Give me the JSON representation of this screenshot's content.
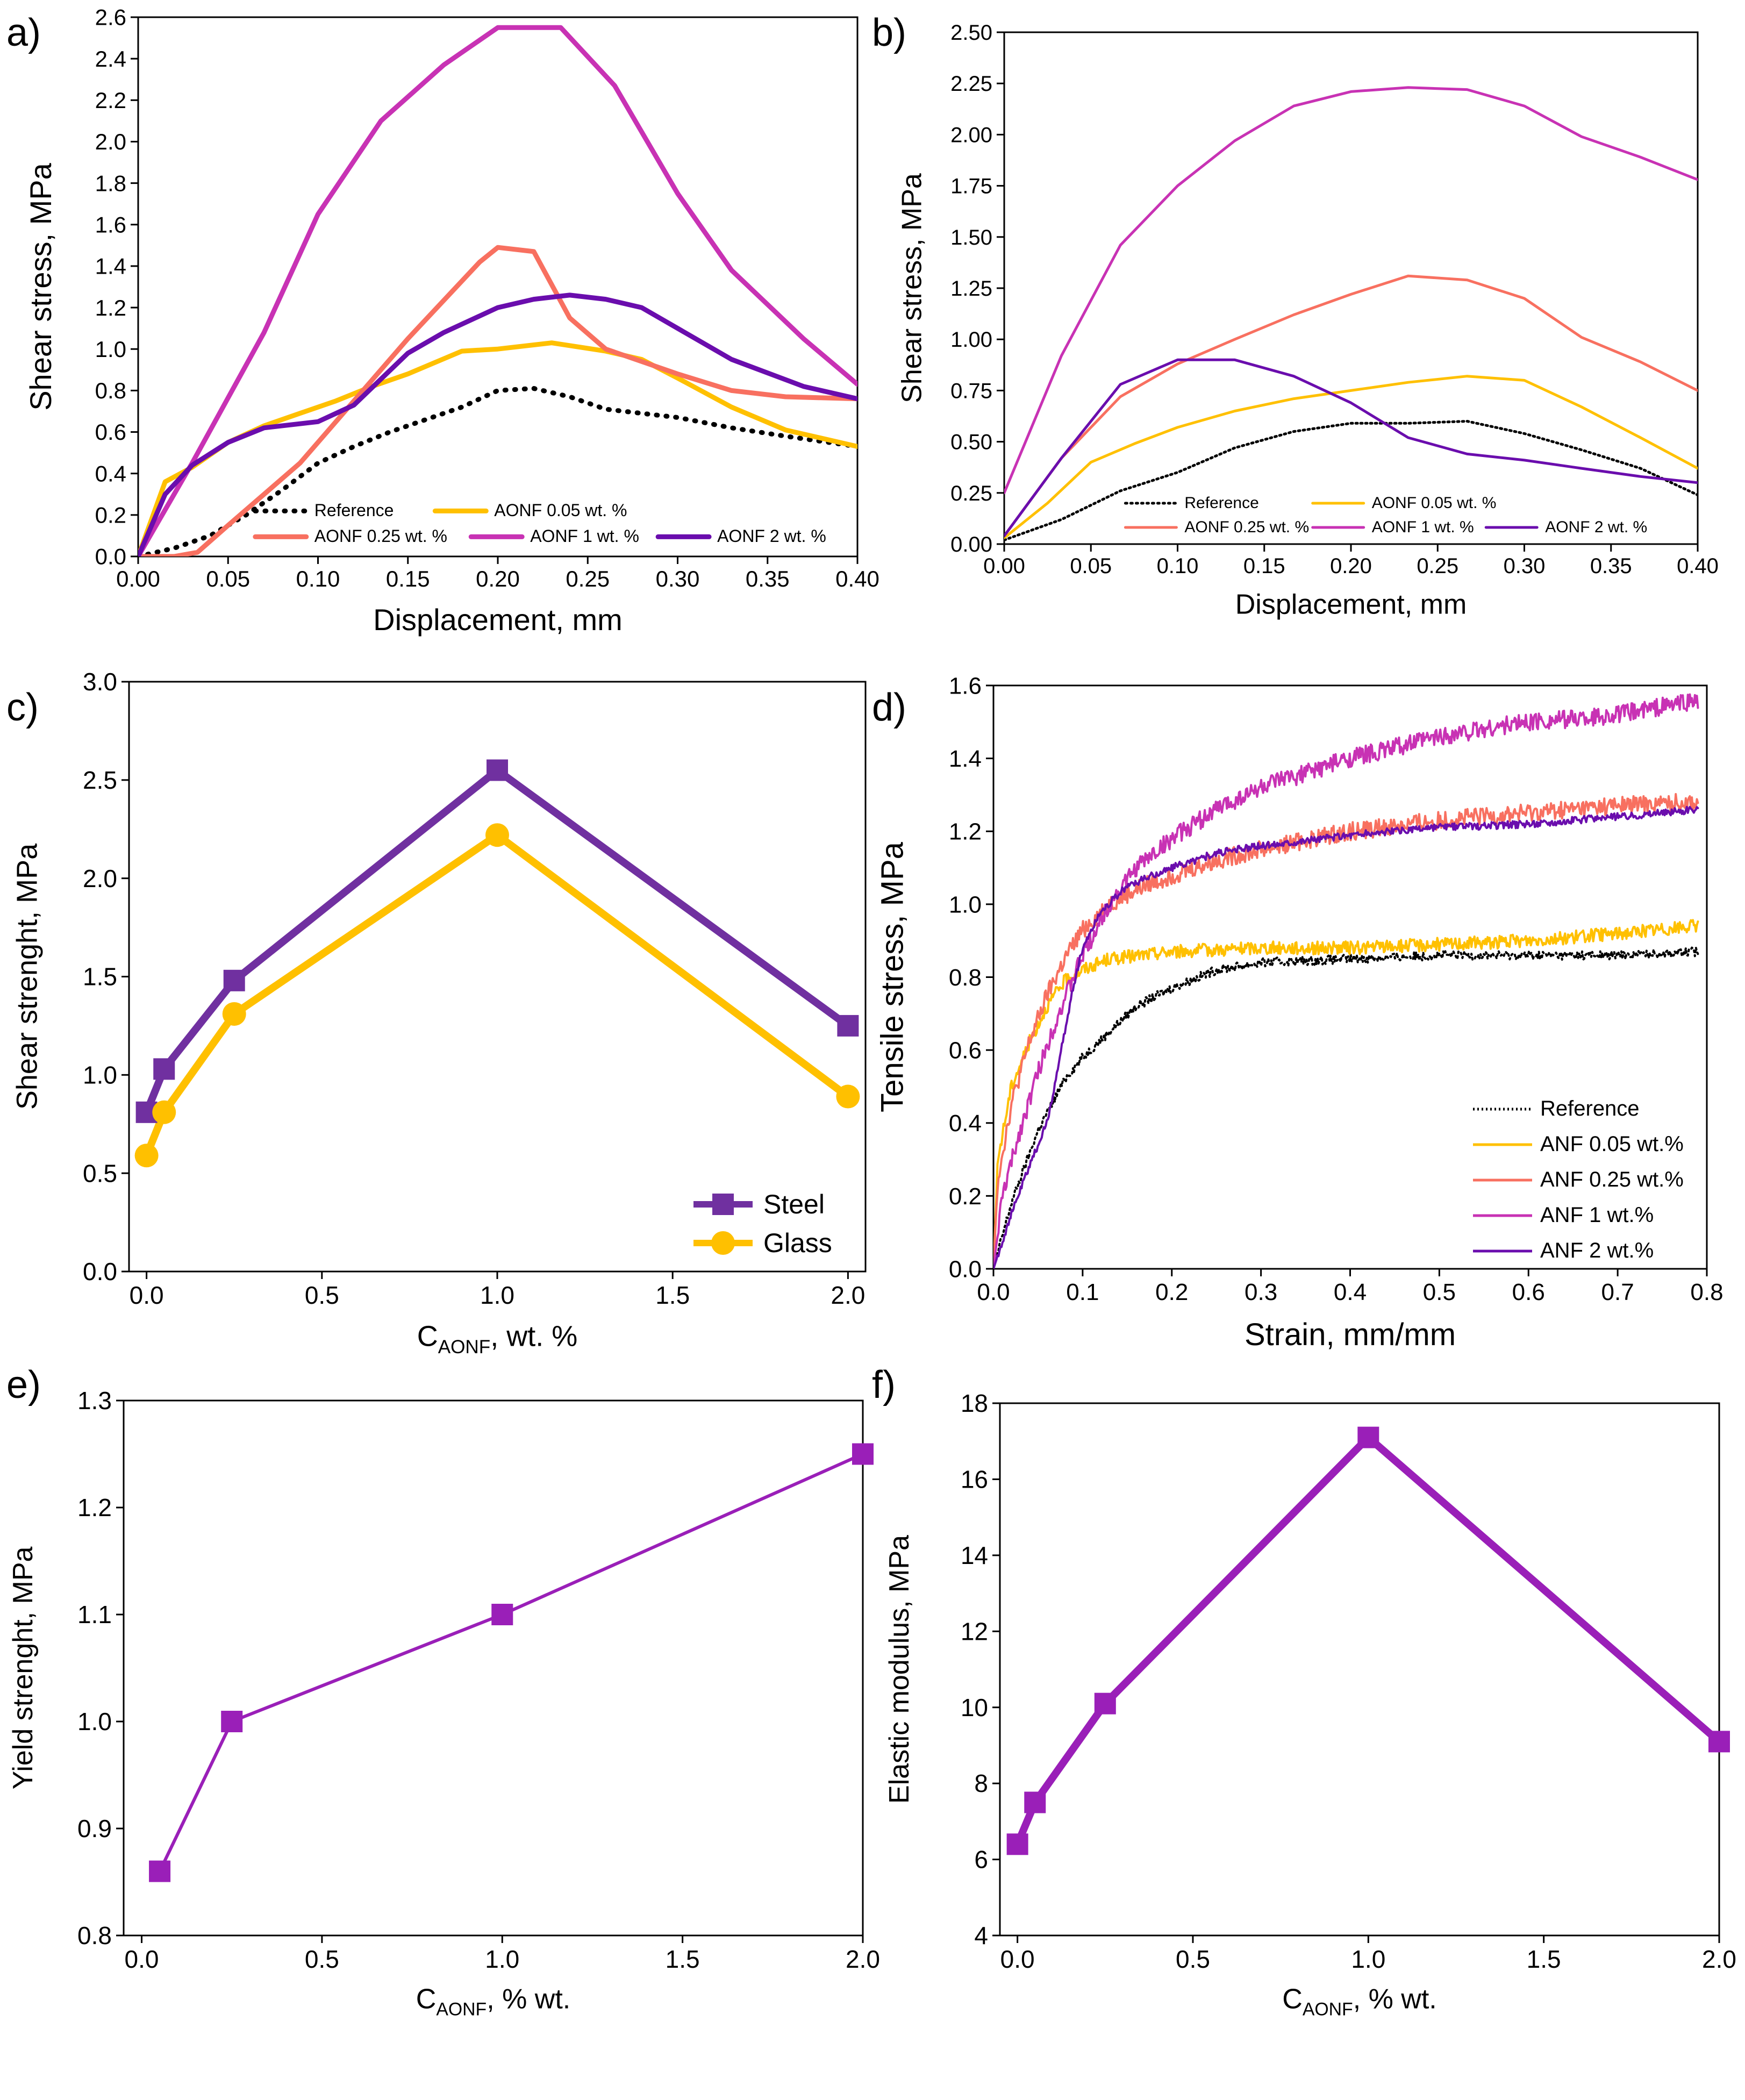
{
  "colors": {
    "reference": "#000000",
    "aonf005": "#FFC000",
    "aonf025": "#F87060",
    "aonf1": "#C832B4",
    "aonf2": "#6A0DAD",
    "steel": "#7030A0",
    "glass": "#FFC000",
    "purple": "#9A1FB8"
  },
  "chart_data": [
    {
      "id": "a",
      "type": "line",
      "panel_label": "a)",
      "xlabel": "Displacement, mm",
      "ylabel": "Shear stress, MPa",
      "xlim": [
        0,
        0.4
      ],
      "ylim": [
        0,
        2.6
      ],
      "xticks": [
        0,
        0.05,
        0.1,
        0.15,
        0.2,
        0.25,
        0.3,
        0.35,
        0.4
      ],
      "xtick_labels": [
        "0.00",
        "0.05",
        "0.10",
        "0.15",
        "0.20",
        "0.25",
        "0.30",
        "0.35",
        "0.40"
      ],
      "yticks": [
        0,
        0.2,
        0.4,
        0.6,
        0.8,
        1.0,
        1.2,
        1.4,
        1.6,
        1.8,
        2.0,
        2.2,
        2.4,
        2.6
      ],
      "ytick_labels": [
        "0.0",
        "0.2",
        "0.4",
        "0.6",
        "0.8",
        "1.0",
        "1.2",
        "1.4",
        "1.6",
        "1.8",
        "2.0",
        "2.2",
        "2.4",
        "2.6"
      ],
      "legend": {
        "position": "bottom-center",
        "cols": 3,
        "rows": [
          [
            "Reference",
            "AONF 0.05 wt. %"
          ],
          [
            "AONF 0.25 wt. %",
            "AONF 1 wt. %",
            "AONF 2 wt. %"
          ]
        ]
      },
      "series": [
        {
          "name": "Reference",
          "color": "#000000",
          "dash": "dot",
          "width": 9,
          "x": [
            0,
            0.02,
            0.04,
            0.06,
            0.08,
            0.1,
            0.12,
            0.14,
            0.16,
            0.18,
            0.2,
            0.22,
            0.24,
            0.26,
            0.28,
            0.3,
            0.33,
            0.36,
            0.4
          ],
          "y": [
            0,
            0.04,
            0.1,
            0.2,
            0.32,
            0.45,
            0.53,
            0.6,
            0.66,
            0.72,
            0.8,
            0.81,
            0.77,
            0.71,
            0.69,
            0.67,
            0.62,
            0.58,
            0.53
          ]
        },
        {
          "name": "AONF 0.05 wt. %",
          "color": "#FFC000",
          "width": 9,
          "x": [
            0,
            0.015,
            0.03,
            0.05,
            0.07,
            0.09,
            0.11,
            0.13,
            0.15,
            0.18,
            0.2,
            0.23,
            0.26,
            0.28,
            0.3,
            0.33,
            0.36,
            0.4
          ],
          "y": [
            0,
            0.36,
            0.43,
            0.55,
            0.63,
            0.69,
            0.75,
            0.82,
            0.88,
            0.99,
            1.0,
            1.03,
            0.99,
            0.95,
            0.86,
            0.72,
            0.61,
            0.53
          ]
        },
        {
          "name": "AONF 0.25 wt. %",
          "color": "#F87060",
          "width": 9,
          "x": [
            0,
            0.02,
            0.033,
            0.05,
            0.07,
            0.09,
            0.11,
            0.13,
            0.15,
            0.19,
            0.2,
            0.22,
            0.24,
            0.26,
            0.3,
            0.33,
            0.36,
            0.4
          ],
          "y": [
            0,
            0,
            0.02,
            0.15,
            0.3,
            0.45,
            0.65,
            0.85,
            1.05,
            1.42,
            1.49,
            1.47,
            1.15,
            1.0,
            0.88,
            0.8,
            0.77,
            0.76
          ]
        },
        {
          "name": "AONF 1 wt. %",
          "color": "#C832B4",
          "width": 9,
          "x": [
            0,
            0.03,
            0.07,
            0.1,
            0.135,
            0.17,
            0.2,
            0.235,
            0.265,
            0.3,
            0.33,
            0.37,
            0.4
          ],
          "y": [
            0,
            0.45,
            1.08,
            1.65,
            2.1,
            2.37,
            2.55,
            2.55,
            2.27,
            1.75,
            1.38,
            1.05,
            0.83
          ]
        },
        {
          "name": "AONF 2 wt. %",
          "color": "#6A0DAD",
          "width": 9,
          "x": [
            0,
            0.015,
            0.03,
            0.05,
            0.07,
            0.1,
            0.12,
            0.15,
            0.17,
            0.2,
            0.22,
            0.24,
            0.26,
            0.28,
            0.3,
            0.33,
            0.37,
            0.4
          ],
          "y": [
            0,
            0.3,
            0.44,
            0.55,
            0.62,
            0.65,
            0.73,
            0.98,
            1.08,
            1.2,
            1.24,
            1.26,
            1.24,
            1.2,
            1.1,
            0.95,
            0.82,
            0.76
          ]
        }
      ]
    },
    {
      "id": "b",
      "type": "line",
      "panel_label": "b)",
      "xlabel": "Displacement, mm",
      "ylabel": "Shear stress, MPa",
      "xlim": [
        0,
        0.4
      ],
      "ylim": [
        0,
        2.5
      ],
      "xticks": [
        0,
        0.05,
        0.1,
        0.15,
        0.2,
        0.25,
        0.3,
        0.35,
        0.4
      ],
      "xtick_labels": [
        "0.00",
        "0.05",
        "0.10",
        "0.15",
        "0.20",
        "0.25",
        "0.30",
        "0.35",
        "0.40"
      ],
      "yticks": [
        0,
        0.25,
        0.5,
        0.75,
        1.0,
        1.25,
        1.5,
        1.75,
        2.0,
        2.25,
        2.5
      ],
      "ytick_labels": [
        "0.00",
        "0.25",
        "0.50",
        "0.75",
        "1.00",
        "1.25",
        "1.50",
        "1.75",
        "2.00",
        "2.25",
        "2.50"
      ],
      "legend": {
        "position": "bottom-center",
        "cols": 3,
        "rows": [
          [
            "Reference",
            "AONF 0.05 wt. %"
          ],
          [
            "AONF 0.25 wt. %",
            "AONF 1 wt. %",
            "AONF 2 wt. %"
          ]
        ]
      },
      "series": [
        {
          "name": "Reference",
          "color": "#000000",
          "dash": "dot",
          "width": 5,
          "x": [
            0,
            0.033,
            0.067,
            0.1,
            0.133,
            0.167,
            0.2,
            0.233,
            0.267,
            0.3,
            0.333,
            0.367,
            0.4
          ],
          "y": [
            0.02,
            0.12,
            0.26,
            0.35,
            0.47,
            0.55,
            0.59,
            0.59,
            0.6,
            0.54,
            0.46,
            0.37,
            0.24
          ]
        },
        {
          "name": "AONF 0.05 wt. %",
          "color": "#FFC000",
          "width": 5,
          "x": [
            0,
            0.025,
            0.05,
            0.075,
            0.1,
            0.133,
            0.167,
            0.2,
            0.233,
            0.267,
            0.3,
            0.333,
            0.367,
            0.4
          ],
          "y": [
            0.03,
            0.2,
            0.4,
            0.49,
            0.57,
            0.65,
            0.71,
            0.75,
            0.79,
            0.82,
            0.8,
            0.67,
            0.52,
            0.37
          ]
        },
        {
          "name": "AONF 0.25 wt. %",
          "color": "#F87060",
          "width": 5,
          "x": [
            0,
            0.033,
            0.067,
            0.1,
            0.133,
            0.167,
            0.2,
            0.233,
            0.267,
            0.3,
            0.333,
            0.367,
            0.4
          ],
          "y": [
            0.04,
            0.42,
            0.72,
            0.88,
            1.0,
            1.12,
            1.22,
            1.31,
            1.29,
            1.2,
            1.01,
            0.89,
            0.75
          ]
        },
        {
          "name": "AONF 1 wt. %",
          "color": "#C832B4",
          "width": 5,
          "x": [
            0,
            0.033,
            0.067,
            0.1,
            0.133,
            0.167,
            0.2,
            0.233,
            0.267,
            0.3,
            0.333,
            0.367,
            0.4
          ],
          "y": [
            0.25,
            0.92,
            1.46,
            1.75,
            1.97,
            2.14,
            2.21,
            2.23,
            2.22,
            2.14,
            1.99,
            1.89,
            1.78
          ]
        },
        {
          "name": "AONF 2 wt. %",
          "color": "#6A0DAD",
          "width": 5,
          "x": [
            0,
            0.033,
            0.067,
            0.1,
            0.133,
            0.167,
            0.2,
            0.233,
            0.267,
            0.3,
            0.333,
            0.367,
            0.4
          ],
          "y": [
            0.04,
            0.42,
            0.78,
            0.9,
            0.9,
            0.82,
            0.69,
            0.52,
            0.44,
            0.41,
            0.37,
            0.33,
            0.3
          ]
        }
      ]
    },
    {
      "id": "c",
      "type": "line",
      "panel_label": "c)",
      "xlabel_main": "C",
      "xlabel_sub": "AONF",
      "xlabel_rest": ", wt. %",
      "ylabel": "Shear strenght, MPa",
      "xlim": [
        -0.05,
        2.05
      ],
      "ylim": [
        0,
        3.0
      ],
      "xticks": [
        0,
        0.5,
        1.0,
        1.5,
        2.0
      ],
      "xtick_labels": [
        "0.0",
        "0.5",
        "1.0",
        "1.5",
        "2.0"
      ],
      "yticks": [
        0,
        0.5,
        1.0,
        1.5,
        2.0,
        2.5,
        3.0
      ],
      "ytick_labels": [
        "0.0",
        "0.5",
        "1.0",
        "1.5",
        "2.0",
        "2.5",
        "3.0"
      ],
      "legend": {
        "position": "bottom-right",
        "rows": [
          [
            "Steel"
          ],
          [
            "Glass"
          ]
        ]
      },
      "series": [
        {
          "name": "Steel",
          "color": "#7030A0",
          "marker": "square",
          "width": 14,
          "x": [
            0,
            0.05,
            0.25,
            1.0,
            2.0
          ],
          "y": [
            0.81,
            1.03,
            1.48,
            2.55,
            1.25
          ]
        },
        {
          "name": "Glass",
          "color": "#FFC000",
          "marker": "circle",
          "width": 14,
          "x": [
            0,
            0.05,
            0.25,
            1.0,
            2.0
          ],
          "y": [
            0.59,
            0.81,
            1.31,
            2.22,
            0.89
          ]
        }
      ]
    },
    {
      "id": "d",
      "type": "line",
      "panel_label": "d)",
      "xlabel": "Strain, mm/mm",
      "ylabel": "Tensile stress, MPa",
      "xlim": [
        0,
        0.8
      ],
      "ylim": [
        0,
        1.6
      ],
      "xticks": [
        0,
        0.1,
        0.2,
        0.3,
        0.4,
        0.5,
        0.6,
        0.7,
        0.8
      ],
      "xtick_labels": [
        "0.0",
        "0.1",
        "0.2",
        "0.3",
        "0.4",
        "0.5",
        "0.6",
        "0.7",
        "0.8"
      ],
      "yticks": [
        0,
        0.2,
        0.4,
        0.6,
        0.8,
        1.0,
        1.2,
        1.4,
        1.6
      ],
      "ytick_labels": [
        "0.0",
        "0.2",
        "0.4",
        "0.6",
        "0.8",
        "1.0",
        "1.2",
        "1.4",
        "1.6"
      ],
      "legend": {
        "position": "bottom-right",
        "rows": [
          [
            "Reference"
          ],
          [
            "ANF 0.05 wt.%"
          ],
          [
            "ANF 0.25 wt.%"
          ],
          [
            "ANF 1 wt.%"
          ],
          [
            "ANF 2 wt.%"
          ]
        ]
      },
      "series": [
        {
          "name": "Reference",
          "color": "#000000",
          "dash": "dot",
          "width": 4,
          "noise": 0.012,
          "x": [
            0,
            0.02,
            0.05,
            0.08,
            0.1,
            0.13,
            0.16,
            0.2,
            0.25,
            0.3,
            0.4,
            0.5,
            0.6,
            0.7,
            0.79
          ],
          "y": [
            0,
            0.18,
            0.38,
            0.52,
            0.58,
            0.65,
            0.72,
            0.77,
            0.82,
            0.84,
            0.85,
            0.86,
            0.86,
            0.86,
            0.87
          ]
        },
        {
          "name": "ANF 0.05 wt.%",
          "color": "#FFC000",
          "width": 4,
          "noise": 0.018,
          "x": [
            0,
            0.005,
            0.02,
            0.04,
            0.06,
            0.08,
            0.1,
            0.13,
            0.2,
            0.3,
            0.4,
            0.5,
            0.6,
            0.7,
            0.79
          ],
          "y": [
            0,
            0.3,
            0.5,
            0.62,
            0.72,
            0.79,
            0.82,
            0.85,
            0.87,
            0.88,
            0.88,
            0.89,
            0.9,
            0.92,
            0.94
          ]
        },
        {
          "name": "ANF 0.25 wt.%",
          "color": "#F87060",
          "width": 4,
          "noise": 0.025,
          "x": [
            0,
            0.005,
            0.02,
            0.04,
            0.06,
            0.08,
            0.1,
            0.13,
            0.16,
            0.2,
            0.25,
            0.3,
            0.4,
            0.5,
            0.6,
            0.7,
            0.79
          ],
          "y": [
            0,
            0.25,
            0.45,
            0.62,
            0.75,
            0.85,
            0.93,
            1.0,
            1.04,
            1.08,
            1.12,
            1.15,
            1.2,
            1.23,
            1.25,
            1.27,
            1.28
          ]
        },
        {
          "name": "ANF 1 wt.%",
          "color": "#C832B4",
          "width": 4,
          "noise": 0.025,
          "x": [
            0,
            0.01,
            0.03,
            0.05,
            0.07,
            0.1,
            0.13,
            0.16,
            0.2,
            0.25,
            0.3,
            0.4,
            0.5,
            0.6,
            0.7,
            0.79
          ],
          "y": [
            0,
            0.2,
            0.38,
            0.54,
            0.68,
            0.86,
            1.0,
            1.1,
            1.18,
            1.26,
            1.32,
            1.4,
            1.46,
            1.5,
            1.52,
            1.56
          ]
        },
        {
          "name": "ANF 2 wt.%",
          "color": "#6A0DAD",
          "width": 4,
          "noise": 0.01,
          "x": [
            0,
            0.02,
            0.04,
            0.06,
            0.07,
            0.09,
            0.1,
            0.12,
            0.15,
            0.2,
            0.25,
            0.3,
            0.4,
            0.5,
            0.6,
            0.7,
            0.79
          ],
          "y": [
            0,
            0.15,
            0.28,
            0.4,
            0.52,
            0.78,
            0.88,
            0.98,
            1.05,
            1.1,
            1.14,
            1.16,
            1.19,
            1.21,
            1.22,
            1.24,
            1.26
          ]
        }
      ]
    },
    {
      "id": "e",
      "type": "line",
      "panel_label": "e)",
      "xlabel_main": "C",
      "xlabel_sub": "AONF",
      "xlabel_rest": ", % wt.",
      "ylabel": "Yield strenght, MPa",
      "xlim": [
        -0.05,
        2.0
      ],
      "ylim": [
        0.8,
        1.3
      ],
      "xticks": [
        0,
        0.5,
        1.0,
        1.5,
        2.0
      ],
      "xtick_labels": [
        "0.0",
        "0.5",
        "1.0",
        "1.5",
        "2.0"
      ],
      "yticks": [
        0.8,
        0.9,
        1.0,
        1.1,
        1.2,
        1.3
      ],
      "ytick_labels": [
        "0.8",
        "0.9",
        "1.0",
        "1.1",
        "1.2",
        "1.3"
      ],
      "series": [
        {
          "name": "Yield strenght",
          "color": "#9A1FB8",
          "marker": "square",
          "width": 6,
          "x": [
            0.05,
            0.25,
            1.0,
            2.0
          ],
          "y": [
            0.86,
            1.0,
            1.1,
            1.25
          ]
        }
      ]
    },
    {
      "id": "f",
      "type": "line",
      "panel_label": "f)",
      "xlabel_main": "C",
      "xlabel_sub": "AONF",
      "xlabel_rest": ", % wt.",
      "ylabel": "Elastic modulus, MPa",
      "xlim": [
        -0.05,
        2.0
      ],
      "ylim": [
        4,
        18
      ],
      "xticks": [
        0,
        0.5,
        1.0,
        1.5,
        2.0
      ],
      "xtick_labels": [
        "0.0",
        "0.5",
        "1.0",
        "1.5",
        "2.0"
      ],
      "yticks": [
        4,
        6,
        8,
        10,
        12,
        14,
        16,
        18
      ],
      "ytick_labels": [
        "4",
        "6",
        "8",
        "10",
        "12",
        "14",
        "16",
        "18"
      ],
      "series": [
        {
          "name": "Elastic modulus",
          "color": "#9A1FB8",
          "marker": "square",
          "width": 14,
          "x": [
            0,
            0.05,
            0.25,
            1.0,
            2.0
          ],
          "y": [
            6.4,
            7.5,
            10.1,
            17.1,
            9.1
          ]
        }
      ]
    }
  ]
}
